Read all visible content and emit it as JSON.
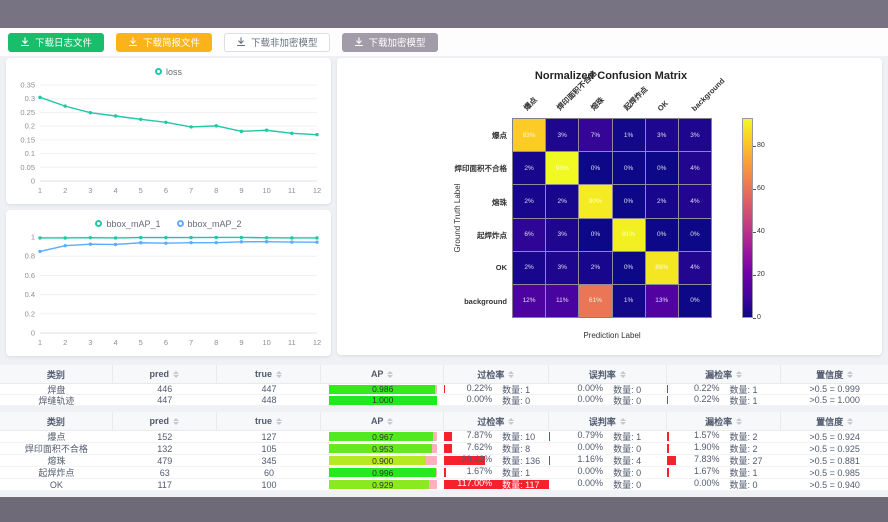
{
  "toolbar": {
    "buttons": [
      {
        "label": "下载日志文件",
        "bg": "#19be6b",
        "fg": "#ffffff",
        "border": "#19be6b"
      },
      {
        "label": "下载简报文件",
        "bg": "#fbb31a",
        "fg": "#ffffff",
        "border": "#fbb31a"
      },
      {
        "label": "下载非加密模型",
        "bg": "#ffffff",
        "fg": "#66717f",
        "border": "#dcdee2"
      },
      {
        "label": "下载加密模型",
        "bg": "#a19ca8",
        "fg": "#ffffff",
        "border": "#a19ca8"
      }
    ]
  },
  "chart_data": [
    {
      "type": "line",
      "title": "loss",
      "x": [
        1,
        2,
        3,
        4,
        5,
        6,
        7,
        8,
        9,
        10,
        11,
        12
      ],
      "series": [
        {
          "name": "loss",
          "color": "#21c7a6",
          "values": [
            0.305,
            0.273,
            0.249,
            0.237,
            0.225,
            0.214,
            0.197,
            0.201,
            0.181,
            0.185,
            0.174,
            0.169
          ]
        }
      ],
      "ylim": [
        0,
        0.35
      ],
      "yticks": [
        0,
        0.05,
        0.1,
        0.15,
        0.2,
        0.25,
        0.3,
        0.35
      ],
      "grid": true,
      "legend_position": "top"
    },
    {
      "type": "line",
      "title": "bbox_mAP",
      "x": [
        1,
        2,
        3,
        4,
        5,
        6,
        7,
        8,
        9,
        10,
        11,
        12
      ],
      "series": [
        {
          "name": "bbox_mAP_1",
          "color": "#21c7a6",
          "values": [
            0.99,
            0.99,
            0.993,
            0.99,
            0.994,
            0.994,
            0.994,
            0.995,
            0.995,
            0.992,
            0.99,
            0.99
          ]
        },
        {
          "name": "bbox_mAP_2",
          "color": "#5cadff",
          "values": [
            0.85,
            0.91,
            0.925,
            0.922,
            0.94,
            0.936,
            0.941,
            0.941,
            0.95,
            0.951,
            0.947,
            0.946
          ]
        }
      ],
      "ylim": [
        0,
        1
      ],
      "yticks": [
        0,
        0.2,
        0.4,
        0.6,
        0.8,
        1
      ],
      "grid": true,
      "legend_position": "top"
    },
    {
      "type": "heatmap",
      "title": "Normalized Confusion Matrix",
      "xlabel": "Prediction Label",
      "ylabel": "Ground Truth Label",
      "labels": [
        "爆点",
        "焊印面积不合格",
        "熔珠",
        "起焊炸点",
        "OK",
        "background"
      ],
      "matrix": [
        [
          83,
          3,
          7,
          1,
          3,
          3
        ],
        [
          2,
          93,
          0,
          0,
          0,
          4
        ],
        [
          2,
          2,
          90,
          0,
          2,
          4
        ],
        [
          6,
          3,
          0,
          91,
          0,
          0
        ],
        [
          2,
          3,
          2,
          0,
          89,
          4
        ],
        [
          12,
          11,
          61,
          1,
          13,
          0
        ]
      ],
      "unit": "%",
      "vmax": 93,
      "colorbar_ticks": [
        0,
        20,
        40,
        60,
        80
      ],
      "colormap": "plasma"
    }
  ],
  "tables": {
    "headers": [
      {
        "label": "类别",
        "sortable": false
      },
      {
        "label": "pred",
        "sortable": true
      },
      {
        "label": "true",
        "sortable": true
      },
      {
        "label": "AP",
        "sortable": true
      },
      {
        "label": "过检率",
        "sortable": true
      },
      {
        "label": "误判率",
        "sortable": true
      },
      {
        "label": "漏检率",
        "sortable": true
      },
      {
        "label": "置信度",
        "sortable": true
      }
    ],
    "quantity_label": "数量:",
    "bar_red": "#f5222d",
    "ap_track_pink": "#ffb0bc",
    "groups": [
      {
        "rows": [
          {
            "category": "焊盘",
            "pred": "446",
            "true": "447",
            "ap": "0.986",
            "rates": [
              {
                "pct": "0.22%",
                "count": "1",
                "value": 0.22
              },
              {
                "pct": "0.00%",
                "count": "0",
                "value": 0
              },
              {
                "pct": "0.22%",
                "count": "1",
                "value": 0.22
              }
            ],
            "confidence": ">0.5 = 0.999"
          },
          {
            "category": "焊缝轨迹",
            "pred": "447",
            "true": "448",
            "ap": "1.000",
            "rates": [
              {
                "pct": "0.00%",
                "count": "0",
                "value": 0
              },
              {
                "pct": "0.00%",
                "count": "0",
                "value": 0
              },
              {
                "pct": "0.22%",
                "count": "1",
                "value": 0.22
              }
            ],
            "confidence": ">0.5 = 1.000"
          }
        ]
      },
      {
        "rows": [
          {
            "category": "爆点",
            "pred": "152",
            "true": "127",
            "ap": "0.967",
            "rates": [
              {
                "pct": "7.87%",
                "count": "10",
                "value": 7.87
              },
              {
                "pct": "0.79%",
                "count": "1",
                "value": 0.79
              },
              {
                "pct": "1.57%",
                "count": "2",
                "value": 1.57
              }
            ],
            "confidence": ">0.5 = 0.924"
          },
          {
            "category": "焊印面积不合格",
            "pred": "132",
            "true": "105",
            "ap": "0.953",
            "rates": [
              {
                "pct": "7.62%",
                "count": "8",
                "value": 7.62
              },
              {
                "pct": "0.00%",
                "count": "0",
                "value": 0
              },
              {
                "pct": "1.90%",
                "count": "2",
                "value": 1.9
              }
            ],
            "confidence": ">0.5 = 0.925"
          },
          {
            "category": "熔珠",
            "pred": "479",
            "true": "345",
            "ap": "0.900",
            "rates": [
              {
                "pct": "39.42%",
                "count": "136",
                "value": 39.42
              },
              {
                "pct": "1.16%",
                "count": "4",
                "value": 1.16
              },
              {
                "pct": "7.83%",
                "count": "27",
                "value": 7.83
              }
            ],
            "confidence": ">0.5 = 0.881"
          },
          {
            "category": "起焊炸点",
            "pred": "63",
            "true": "60",
            "ap": "0.996",
            "rates": [
              {
                "pct": "1.67%",
                "count": "1",
                "value": 1.67
              },
              {
                "pct": "0.00%",
                "count": "0",
                "value": 0
              },
              {
                "pct": "1.67%",
                "count": "1",
                "value": 1.67
              }
            ],
            "confidence": ">0.5 = 0.985"
          },
          {
            "category": "OK",
            "pred": "117",
            "true": "100",
            "ap": "0.929",
            "rates": [
              {
                "pct": "117.00%",
                "count": "117",
                "value": 117
              },
              {
                "pct": "0.00%",
                "count": "0",
                "value": 0
              },
              {
                "pct": "0.00%",
                "count": "0",
                "value": 0
              }
            ],
            "confidence": ">0.5 = 0.940"
          }
        ]
      }
    ]
  }
}
